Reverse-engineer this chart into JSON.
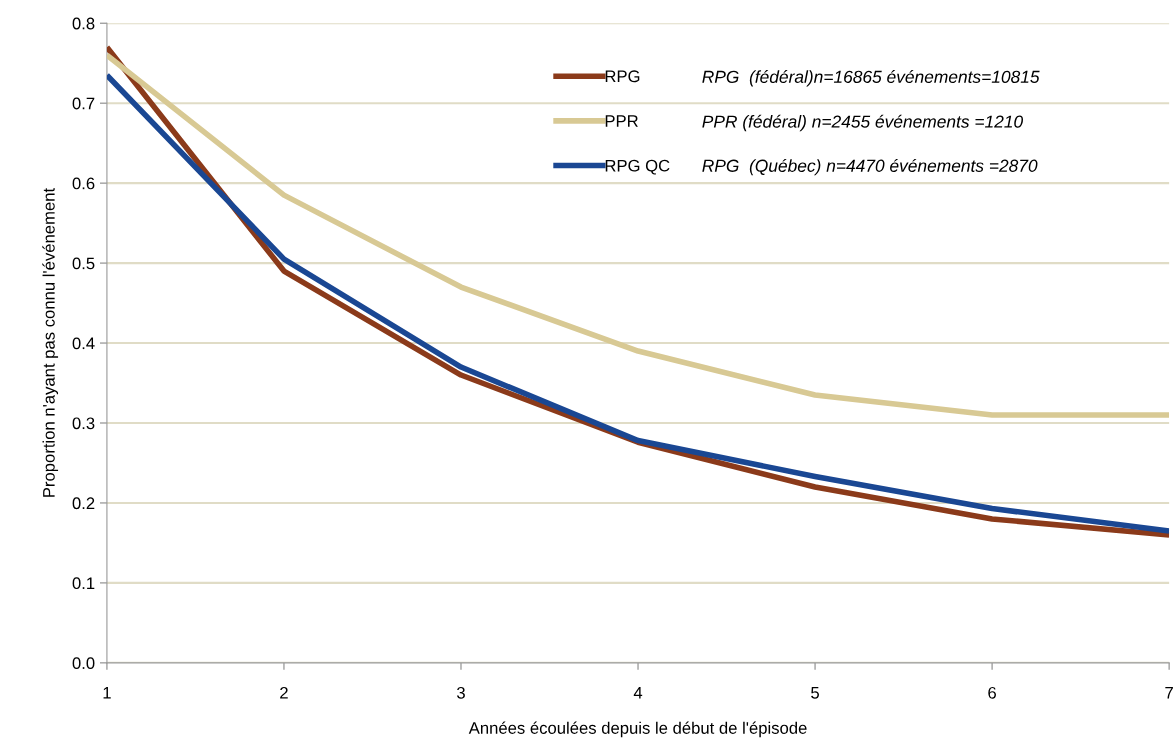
{
  "chart_data": {
    "type": "line",
    "xlabel": "Années écoulées depuis le début de l'épisode",
    "ylabel": "Proportion n'ayant pas connu l'événement",
    "x": [
      1,
      2,
      3,
      4,
      5,
      6,
      7
    ],
    "series": [
      {
        "name": "RPG",
        "color": "#8b3a1a",
        "values": [
          0.77,
          0.49,
          0.36,
          0.276,
          0.22,
          0.18,
          0.16
        ]
      },
      {
        "name": "PPR",
        "color": "#d8c994",
        "values": [
          0.76,
          0.585,
          0.47,
          0.39,
          0.335,
          0.31,
          0.31
        ]
      },
      {
        "name": "RPG QC",
        "color": "#1a4793",
        "values": [
          0.735,
          0.505,
          0.37,
          0.278,
          0.233,
          0.193,
          0.165
        ]
      }
    ],
    "annotations": [
      "RPG  (fédéral)n=16865 événements=10815",
      "PPR (fédéral) n=2455 événements =1210",
      "RPG  (Québec) n=4470 événements =2870"
    ],
    "xlim": [
      1,
      7
    ],
    "xticks": [
      1,
      2,
      3,
      4,
      5,
      6,
      7
    ],
    "ylim": [
      0,
      0.8
    ],
    "yticks": [
      {
        "value": 0,
        "label": "0.0"
      },
      0.1,
      0.2,
      0.3,
      0.4,
      0.5,
      0.6,
      0.7,
      0.8
    ],
    "grid": "y",
    "legend": "top right",
    "marker": "none",
    "line_style": "solid"
  }
}
